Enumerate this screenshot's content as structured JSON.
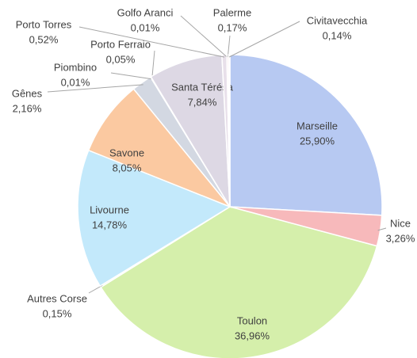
{
  "chart_data": {
    "type": "pie",
    "categories": [
      "Marseille",
      "Nice",
      "Toulon",
      "Autres Corse",
      "Livourne",
      "Savone",
      "Gênes",
      "Piombino",
      "Porto Ferraio",
      "Santa Térésa",
      "Porto Torres",
      "Golfo Aranci",
      "Palerme",
      "Civitavecchia"
    ],
    "values": [
      25.9,
      3.26,
      36.96,
      0.15,
      14.78,
      8.05,
      2.16,
      0.01,
      0.05,
      7.84,
      0.52,
      0.01,
      0.17,
      0.14
    ],
    "value_labels": [
      "25,90%",
      "3,26%",
      "36,96%",
      "0,15%",
      "14,78%",
      "8,05%",
      "2,16%",
      "0,01%",
      "0,05%",
      "7,84%",
      "0,52%",
      "0,01%",
      "0,17%",
      "0,14%"
    ],
    "colors": [
      "#b7c9f2",
      "#f7b9bb",
      "#d5efab",
      "#e3f2cf",
      "#c3e9fb",
      "#fbc9a1",
      "#d3d8e2",
      "#dfe3ea",
      "#e2e4ec",
      "#ddd8e4",
      "#e8e0ea",
      "#ece4ee",
      "#f4d8dc",
      "#e4eef4"
    ]
  }
}
